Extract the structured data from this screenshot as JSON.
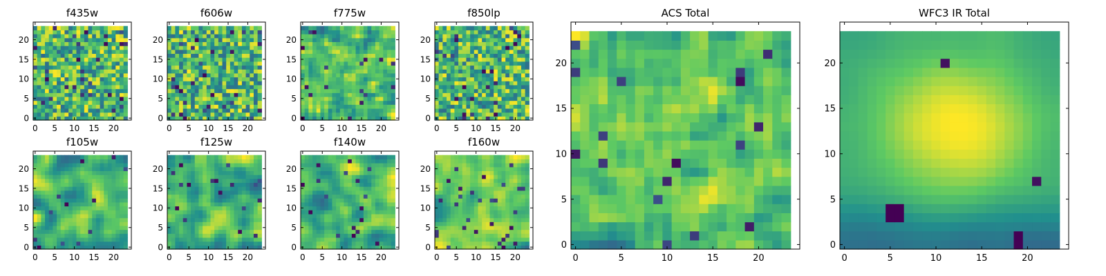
{
  "colors": {
    "colormap": "viridis",
    "viridis_stops": [
      "#440154",
      "#3b528b",
      "#21908d",
      "#5dc963",
      "#fde725"
    ],
    "frame": "#000000",
    "background": "#ffffff"
  },
  "chart_data": [
    {
      "type": "heatmap",
      "title": "f435w",
      "x_ticks": [
        "0",
        "5",
        "10",
        "15",
        "20"
      ],
      "y_ticks": [
        "0",
        "5",
        "10",
        "15",
        "20"
      ],
      "xlim": [
        0,
        24
      ],
      "ylim": [
        0,
        24
      ],
      "grid": false,
      "legend": "none",
      "grid_size": 24,
      "seed": 11,
      "style": "noise",
      "smooth": 0.0,
      "contrast": 1.0,
      "holes": 0.05,
      "colormap": "viridis"
    },
    {
      "type": "heatmap",
      "title": "f606w",
      "x_ticks": [
        "0",
        "5",
        "10",
        "15",
        "20"
      ],
      "y_ticks": [
        "0",
        "5",
        "10",
        "15",
        "20"
      ],
      "xlim": [
        0,
        24
      ],
      "ylim": [
        0,
        24
      ],
      "grid": false,
      "legend": "none",
      "grid_size": 24,
      "seed": 23,
      "style": "noise",
      "smooth": 0.0,
      "contrast": 1.0,
      "holes": 0.05,
      "colormap": "viridis"
    },
    {
      "type": "heatmap",
      "title": "f775w",
      "x_ticks": [
        "0",
        "5",
        "10",
        "15",
        "20"
      ],
      "y_ticks": [
        "0",
        "5",
        "10",
        "15",
        "20"
      ],
      "xlim": [
        0,
        24
      ],
      "ylim": [
        0,
        24
      ],
      "grid": false,
      "legend": "none",
      "grid_size": 24,
      "seed": 37,
      "style": "noise",
      "smooth": 0.2,
      "contrast": 1.0,
      "holes": 0.03,
      "colormap": "viridis"
    },
    {
      "type": "heatmap",
      "title": "f850lp",
      "x_ticks": [
        "0",
        "5",
        "10",
        "15",
        "20"
      ],
      "y_ticks": [
        "0",
        "5",
        "10",
        "15",
        "20"
      ],
      "xlim": [
        0,
        24
      ],
      "ylim": [
        0,
        24
      ],
      "grid": false,
      "legend": "none",
      "grid_size": 24,
      "seed": 41,
      "style": "noise",
      "smooth": 0.1,
      "contrast": 1.0,
      "holes": 0.04,
      "colormap": "viridis"
    },
    {
      "type": "heatmap",
      "title": "f105w",
      "x_ticks": [
        "0",
        "5",
        "10",
        "15",
        "20"
      ],
      "y_ticks": [
        "0",
        "5",
        "10",
        "15",
        "20"
      ],
      "xlim": [
        0,
        24
      ],
      "ylim": [
        0,
        24
      ],
      "grid": false,
      "legend": "none",
      "grid_size": 24,
      "seed": 53,
      "style": "smooth",
      "smooth": 0.6,
      "contrast": 1.0,
      "holes": 0.02,
      "colormap": "viridis"
    },
    {
      "type": "heatmap",
      "title": "f125w",
      "x_ticks": [
        "0",
        "5",
        "10",
        "15",
        "20"
      ],
      "y_ticks": [
        "0",
        "5",
        "10",
        "15",
        "20"
      ],
      "xlim": [
        0,
        24
      ],
      "ylim": [
        0,
        24
      ],
      "grid": false,
      "legend": "none",
      "grid_size": 24,
      "seed": 67,
      "style": "smooth",
      "smooth": 0.5,
      "contrast": 1.0,
      "holes": 0.03,
      "colormap": "viridis"
    },
    {
      "type": "heatmap",
      "title": "f140w",
      "x_ticks": [
        "0",
        "5",
        "10",
        "15",
        "20"
      ],
      "y_ticks": [
        "0",
        "5",
        "10",
        "15",
        "20"
      ],
      "xlim": [
        0,
        24
      ],
      "ylim": [
        0,
        24
      ],
      "grid": false,
      "legend": "none",
      "grid_size": 24,
      "seed": 71,
      "style": "smooth",
      "smooth": 0.6,
      "contrast": 1.0,
      "holes": 0.03,
      "colormap": "viridis"
    },
    {
      "type": "heatmap",
      "title": "f160w",
      "x_ticks": [
        "0",
        "5",
        "10",
        "15",
        "20"
      ],
      "y_ticks": [
        "0",
        "5",
        "10",
        "15",
        "20"
      ],
      "xlim": [
        0,
        24
      ],
      "ylim": [
        0,
        24
      ],
      "grid": false,
      "legend": "none",
      "grid_size": 24,
      "seed": 83,
      "style": "smooth",
      "smooth": 0.5,
      "contrast": 1.0,
      "holes": 0.05,
      "colormap": "viridis"
    },
    {
      "type": "heatmap",
      "title": "ACS Total",
      "x_ticks": [
        "0",
        "5",
        "10",
        "15",
        "20"
      ],
      "y_ticks": [
        "0",
        "5",
        "10",
        "15",
        "20"
      ],
      "xlim": [
        0,
        24
      ],
      "ylim": [
        0,
        24
      ],
      "grid": false,
      "legend": "none",
      "grid_size": 24,
      "seed": 97,
      "style": "noise",
      "smooth": 0.25,
      "contrast": 1.0,
      "holes": 0.03,
      "colormap": "viridis"
    },
    {
      "type": "heatmap",
      "title": "WFC3 IR Total",
      "x_ticks": [
        "0",
        "5",
        "10",
        "15",
        "20"
      ],
      "y_ticks": [
        "0",
        "5",
        "10",
        "15",
        "20"
      ],
      "xlim": [
        0,
        24
      ],
      "ylim": [
        0,
        24
      ],
      "grid": false,
      "legend": "none",
      "grid_size": 24,
      "seed": 101,
      "style": "blob",
      "smooth": 0.75,
      "contrast": 1.0,
      "holes": 0.0,
      "colormap": "viridis"
    }
  ]
}
